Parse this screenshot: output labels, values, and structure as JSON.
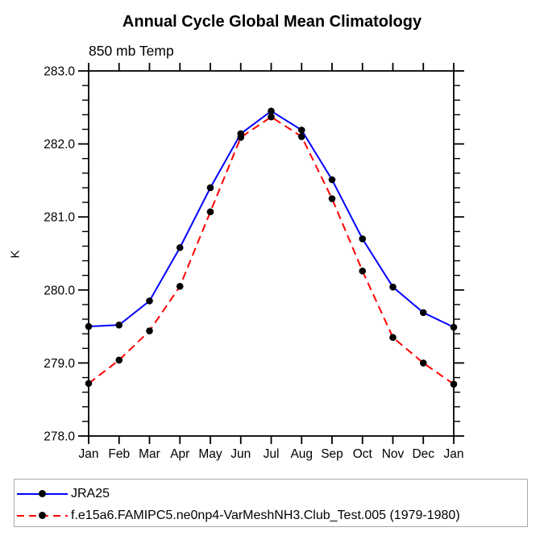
{
  "chart_data": {
    "type": "line",
    "title": "Annual Cycle Global Mean Climatology",
    "subtitle": "850 mb Temp",
    "ylabel": "K",
    "x_categories": [
      "Jan",
      "Feb",
      "Mar",
      "Apr",
      "May",
      "Jun",
      "Jul",
      "Aug",
      "Sep",
      "Oct",
      "Nov",
      "Dec",
      "Jan"
    ],
    "ylim": [
      278.0,
      283.0
    ],
    "y_major_ticks": [
      278.0,
      279.0,
      280.0,
      281.0,
      282.0,
      283.0
    ],
    "y_minor_step": 0.2,
    "grid": false,
    "legend_position": "bottom-left-box",
    "axis_color": "#000000",
    "marker_color": "#000000",
    "series": [
      {
        "name": "JRA25",
        "color": "#0000ff",
        "style": "solid",
        "marker": "circle",
        "values": [
          279.5,
          279.52,
          279.85,
          280.58,
          281.4,
          282.14,
          282.45,
          282.19,
          281.51,
          280.7,
          280.04,
          279.69,
          279.49
        ]
      },
      {
        "name": "f.e15a6.FAMIPC5.ne0np4-VarMeshNH3.Club_Test.005 (1979-1980)",
        "color": "#ff0000",
        "style": "dashed",
        "marker": "circle",
        "values": [
          278.72,
          279.04,
          279.44,
          280.05,
          281.07,
          282.09,
          282.37,
          282.1,
          281.25,
          280.26,
          279.35,
          279.0,
          278.71
        ]
      }
    ]
  }
}
